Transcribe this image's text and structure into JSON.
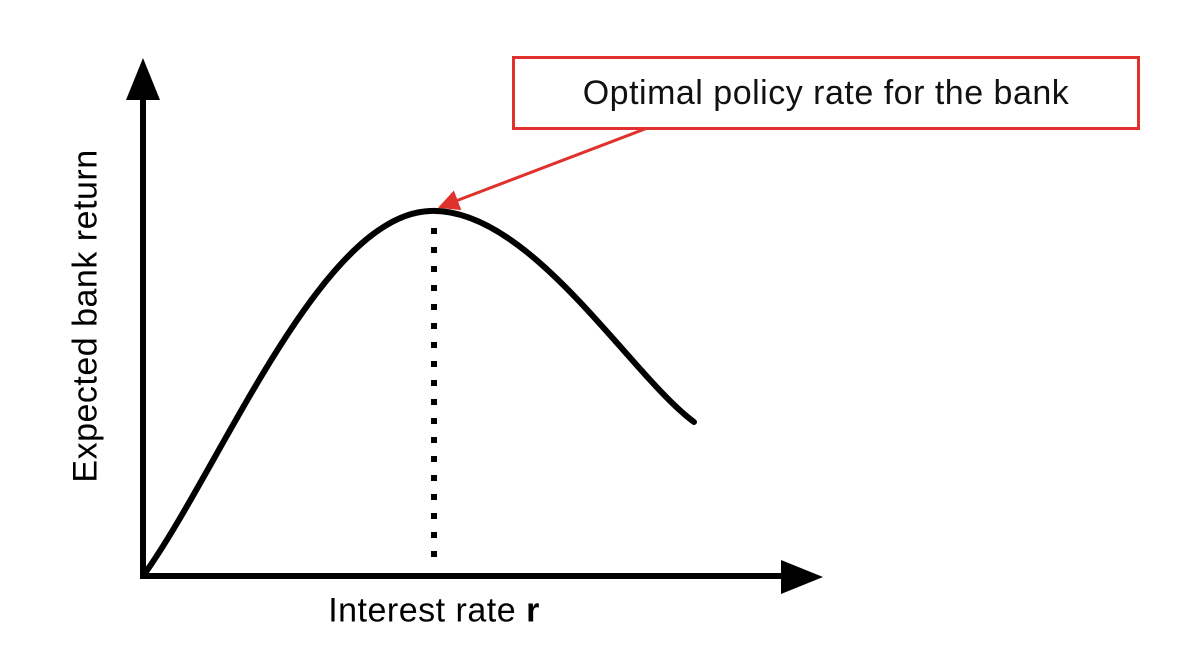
{
  "axes": {
    "y_label": "Expected bank return",
    "x_label_prefix": "Interest rate ",
    "x_label_variable": "r"
  },
  "callout": {
    "text": "Optimal policy rate for the bank"
  },
  "colors": {
    "axis": "#000000",
    "curve": "#000000",
    "callout_border": "#e0312c",
    "callout_arrow": "#e0312c"
  }
}
